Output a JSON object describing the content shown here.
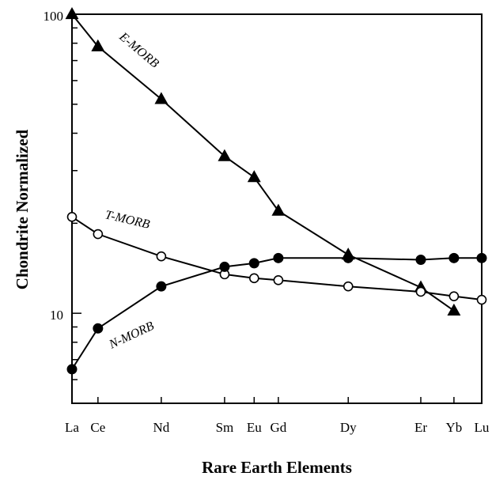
{
  "chart_data": {
    "type": "line",
    "x_categories": [
      "La",
      "Ce",
      "Nd",
      "Sm",
      "Eu",
      "Gd",
      "Dy",
      "Er",
      "Yb",
      "Lu"
    ],
    "x_positions": [
      57.25,
      58.12,
      60.24,
      62.36,
      63.35,
      64.16,
      66.5,
      68.93,
      70.04,
      70.97
    ],
    "xlabel": "Rare Earth Elements",
    "ylabel": "Chondrite Normalized",
    "yscale": "log",
    "ylim": [
      5,
      100
    ],
    "y_tick_labels": [
      "10",
      "100"
    ],
    "grid": false,
    "series": [
      {
        "name": "E-MORB",
        "marker": "triangle-filled",
        "x": [
          "La",
          "Ce",
          "Nd",
          "Sm",
          "Eu",
          "Gd",
          "Dy",
          "Er",
          "Yb"
        ],
        "values": [
          100,
          78,
          52,
          33.5,
          28.5,
          22,
          15.7,
          12.2,
          10.2
        ]
      },
      {
        "name": "T-MORB",
        "marker": "circle-open",
        "x": [
          "La",
          "Ce",
          "Nd",
          "Sm",
          "Eu",
          "Gd",
          "Dy",
          "Er",
          "Yb",
          "Lu"
        ],
        "values": [
          21,
          18.4,
          15.5,
          13.5,
          13.1,
          12.9,
          12.3,
          11.8,
          11.4,
          11.1
        ]
      },
      {
        "name": "N-MORB",
        "marker": "circle-filled",
        "x": [
          "La",
          "Ce",
          "Nd",
          "Sm",
          "Eu",
          "Gd",
          "Dy",
          "Er",
          "Yb",
          "Lu"
        ],
        "values": [
          6.5,
          8.9,
          12.3,
          14.3,
          14.7,
          15.3,
          15.3,
          15.1,
          15.3,
          15.3
        ]
      }
    ]
  }
}
